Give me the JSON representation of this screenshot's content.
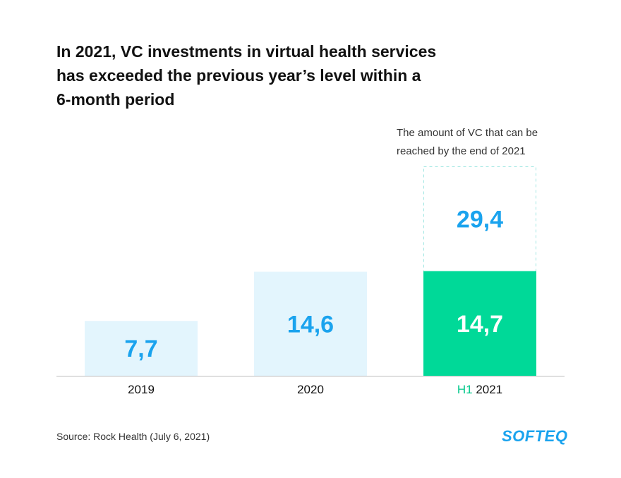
{
  "chart_data": {
    "type": "bar",
    "title": "In 2021, VC investments in virtual health services\nhas exceeded the previous year’s level within a\n6-month period",
    "categories": [
      "2019",
      "2020",
      "H1 2021"
    ],
    "category_parts": [
      {
        "highlight": "",
        "text": "2019"
      },
      {
        "highlight": "",
        "text": "2020"
      },
      {
        "highlight": "H1",
        "text": " 2021"
      }
    ],
    "values": [
      7.7,
      14.6,
      14.7
    ],
    "value_labels": [
      "7,7",
      "14,6",
      "14,7"
    ],
    "projection": {
      "value": 29.4,
      "value_label": "29,4",
      "note": "The amount of VC that can be\nreached by the end of 2021"
    },
    "ylim": [
      0,
      29.4
    ],
    "grid": false,
    "colors": {
      "bar": "#e3f5fd",
      "bar_highlight": "#00d998",
      "value_text": "#1aa3ee",
      "value_text_highlight": "#ffffff",
      "projection_border": "#9fe6e2",
      "axis": "#bbbbbb",
      "label_highlight": "#00c88a"
    }
  },
  "footer": {
    "source": "Source: Rock Health (July 6, 2021)",
    "logo": "SOFTEQ"
  }
}
